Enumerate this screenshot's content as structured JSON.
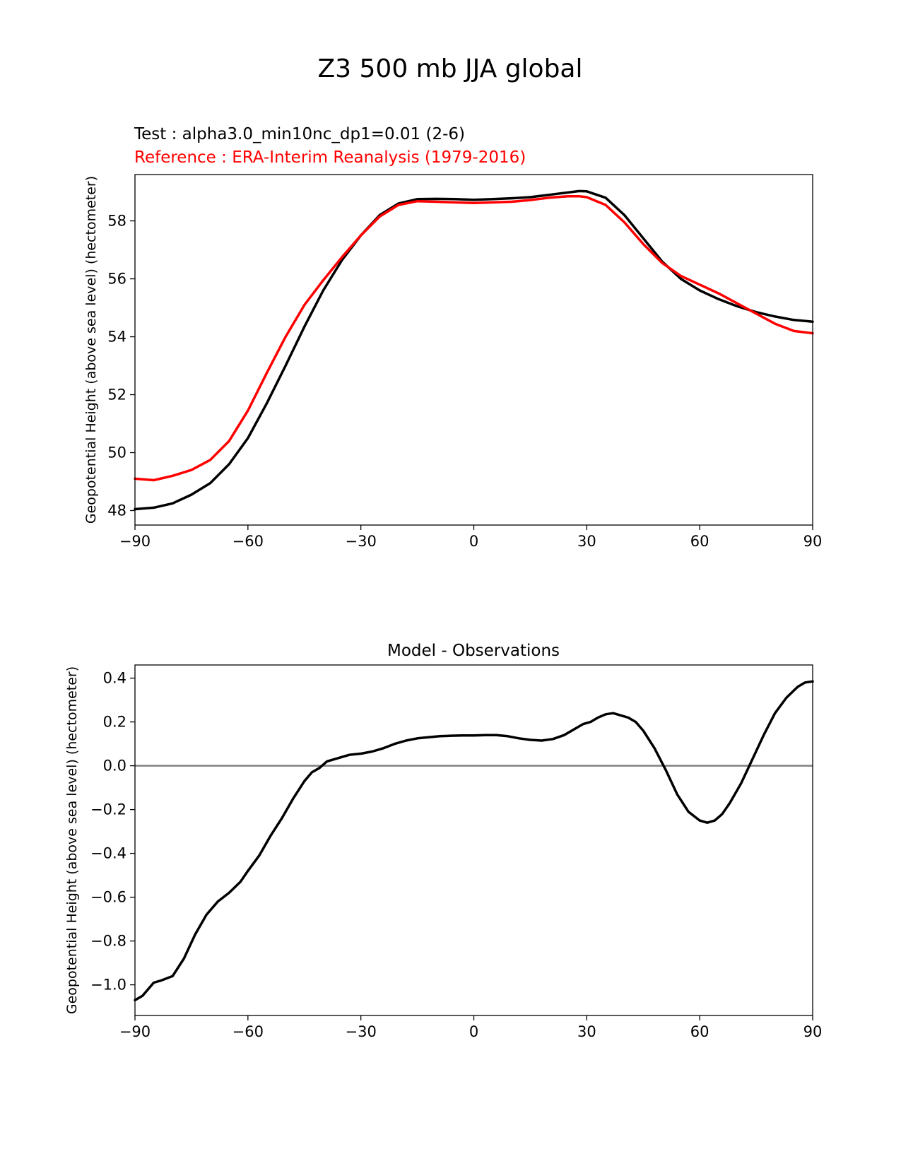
{
  "figure": {
    "title": "Z3 500 mb JJA global"
  },
  "chart_data": [
    {
      "type": "line",
      "title": "",
      "test_label": "Test : alpha3.0_min10nc_dp1=0.01 (2-6)",
      "reference_label": "Reference : ERA-Interim Reanalysis (1979-2016)",
      "xlabel": "",
      "ylabel": "Geopotential Height (above sea level) (hectometer)",
      "xlim": [
        -90,
        90
      ],
      "ylim": [
        47.5,
        59.6
      ],
      "xticks": [
        -90,
        -60,
        -30,
        0,
        30,
        60,
        90
      ],
      "xtick_labels": [
        "−90",
        "−60",
        "−30",
        "0",
        "30",
        "60",
        "90"
      ],
      "yticks": [
        48,
        50,
        52,
        54,
        56,
        58
      ],
      "ytick_labels": [
        "48",
        "50",
        "52",
        "54",
        "56",
        "58"
      ],
      "grid": false,
      "series": [
        {
          "name": "Test",
          "color": "#000000",
          "x": [
            -90,
            -85,
            -80,
            -75,
            -70,
            -65,
            -60,
            -55,
            -50,
            -45,
            -40,
            -35,
            -30,
            -25,
            -20,
            -15,
            -10,
            -5,
            0,
            5,
            10,
            15,
            20,
            25,
            28,
            30,
            35,
            40,
            45,
            50,
            55,
            60,
            65,
            70,
            75,
            80,
            85,
            90
          ],
          "values": [
            48.05,
            48.1,
            48.25,
            48.55,
            48.95,
            49.6,
            50.5,
            51.7,
            53.0,
            54.35,
            55.6,
            56.65,
            57.5,
            58.2,
            58.6,
            58.75,
            58.76,
            58.75,
            58.73,
            58.75,
            58.78,
            58.82,
            58.9,
            58.98,
            59.03,
            59.02,
            58.8,
            58.2,
            57.4,
            56.6,
            56.0,
            55.6,
            55.3,
            55.05,
            54.85,
            54.7,
            54.58,
            54.52
          ]
        },
        {
          "name": "Reference",
          "color": "#ff0000",
          "x": [
            -90,
            -85,
            -80,
            -75,
            -70,
            -65,
            -60,
            -55,
            -50,
            -45,
            -40,
            -35,
            -30,
            -25,
            -20,
            -15,
            -10,
            -5,
            0,
            5,
            10,
            15,
            20,
            25,
            28,
            30,
            35,
            40,
            45,
            50,
            55,
            60,
            65,
            70,
            75,
            80,
            85,
            90
          ],
          "values": [
            49.1,
            49.05,
            49.2,
            49.4,
            49.75,
            50.4,
            51.45,
            52.75,
            54.0,
            55.1,
            55.95,
            56.75,
            57.5,
            58.15,
            58.55,
            58.68,
            58.66,
            58.64,
            58.62,
            58.64,
            58.66,
            58.72,
            58.8,
            58.85,
            58.85,
            58.82,
            58.55,
            57.95,
            57.2,
            56.55,
            56.1,
            55.8,
            55.5,
            55.15,
            54.8,
            54.45,
            54.2,
            54.12
          ]
        }
      ]
    },
    {
      "type": "line",
      "title": "Model - Observations",
      "xlabel": "",
      "ylabel": "Geopotential Height (above sea level) (hectometer)",
      "xlim": [
        -90,
        90
      ],
      "ylim": [
        -1.14,
        0.46
      ],
      "xticks": [
        -90,
        -60,
        -30,
        0,
        30,
        60,
        90
      ],
      "xtick_labels": [
        "−90",
        "−60",
        "−30",
        "0",
        "30",
        "60",
        "90"
      ],
      "yticks": [
        -1.0,
        -0.8,
        -0.6,
        -0.4,
        -0.2,
        0.0,
        0.2,
        0.4
      ],
      "ytick_labels": [
        "−1.0",
        "−0.8",
        "−0.6",
        "−0.4",
        "−0.2",
        "0.0",
        "0.2",
        "0.4"
      ],
      "grid": false,
      "zero_line_color": "#808080",
      "series": [
        {
          "name": "Model - Observations",
          "color": "#000000",
          "x": [
            -90,
            -88,
            -85,
            -83,
            -80,
            -77,
            -74,
            -71,
            -68,
            -65,
            -62,
            -60,
            -57,
            -54,
            -51,
            -48,
            -45,
            -43,
            -41,
            -39,
            -37,
            -35,
            -33,
            -30,
            -27,
            -24,
            -21,
            -18,
            -15,
            -12,
            -9,
            -6,
            -3,
            0,
            3,
            6,
            9,
            12,
            15,
            18,
            21,
            24,
            27,
            29,
            31,
            33,
            35,
            37,
            39,
            41,
            43,
            45,
            48,
            51,
            54,
            57,
            60,
            62,
            64,
            66,
            68,
            71,
            74,
            77,
            80,
            83,
            86,
            88,
            90
          ],
          "values": [
            -1.07,
            -1.05,
            -0.99,
            -0.98,
            -0.96,
            -0.88,
            -0.77,
            -0.68,
            -0.62,
            -0.58,
            -0.53,
            -0.48,
            -0.41,
            -0.32,
            -0.24,
            -0.15,
            -0.07,
            -0.03,
            -0.01,
            0.02,
            0.03,
            0.04,
            0.05,
            0.055,
            0.065,
            0.08,
            0.1,
            0.115,
            0.125,
            0.13,
            0.135,
            0.137,
            0.138,
            0.138,
            0.14,
            0.14,
            0.135,
            0.125,
            0.118,
            0.115,
            0.122,
            0.14,
            0.17,
            0.19,
            0.2,
            0.22,
            0.235,
            0.24,
            0.23,
            0.22,
            0.2,
            0.16,
            0.08,
            -0.02,
            -0.13,
            -0.21,
            -0.25,
            -0.26,
            -0.25,
            -0.22,
            -0.17,
            -0.08,
            0.03,
            0.14,
            0.24,
            0.31,
            0.36,
            0.38,
            0.385
          ]
        }
      ]
    }
  ]
}
